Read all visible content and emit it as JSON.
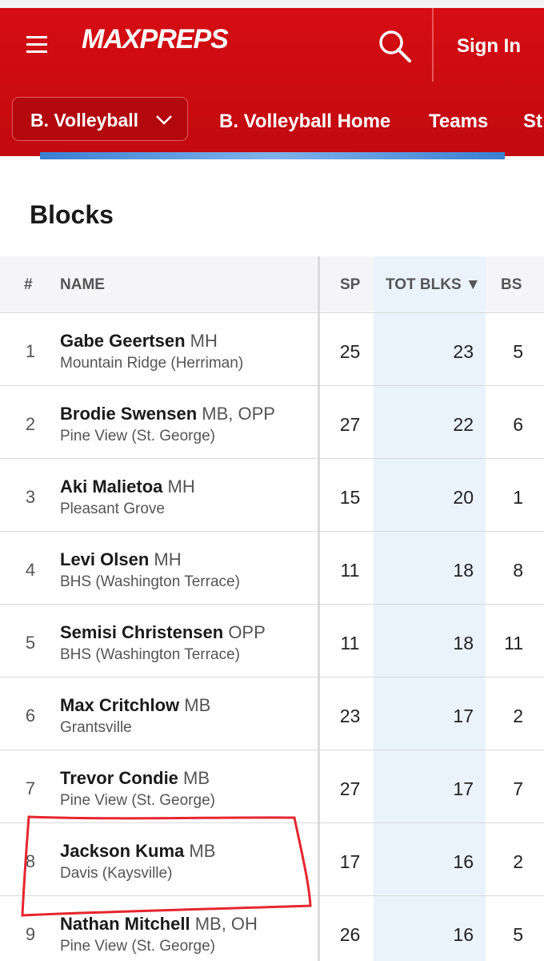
{
  "header": {
    "logo": "MAXPREPS",
    "sign_in": "Sign In",
    "sport": "B. Volleyball",
    "nav": [
      "B. Volleyball Home",
      "Teams",
      "St"
    ]
  },
  "title": "Blocks",
  "table": {
    "columns": [
      "#",
      "NAME",
      "SP",
      "TOT BLKS ▼",
      "BS"
    ],
    "rows": [
      {
        "rank": "1",
        "name": "Gabe Geertsen",
        "position": "MH",
        "school": "Mountain Ridge (Herriman)",
        "sp": "25",
        "tot_blks": "23",
        "bs": "5"
      },
      {
        "rank": "2",
        "name": "Brodie Swensen",
        "position": "MB, OPP",
        "school": "Pine View (St. George)",
        "sp": "27",
        "tot_blks": "22",
        "bs": "6"
      },
      {
        "rank": "3",
        "name": "Aki Malietoa",
        "position": "MH",
        "school": "Pleasant Grove",
        "sp": "15",
        "tot_blks": "20",
        "bs": "1"
      },
      {
        "rank": "4",
        "name": "Levi Olsen",
        "position": "MH",
        "school": "BHS (Washington Terrace)",
        "sp": "11",
        "tot_blks": "18",
        "bs": "8"
      },
      {
        "rank": "5",
        "name": "Semisi Christensen",
        "position": "OPP",
        "school": "BHS (Washington Terrace)",
        "sp": "11",
        "tot_blks": "18",
        "bs": "11"
      },
      {
        "rank": "6",
        "name": "Max Critchlow",
        "position": "MB",
        "school": "Grantsville",
        "sp": "23",
        "tot_blks": "17",
        "bs": "2"
      },
      {
        "rank": "7",
        "name": "Trevor Condie",
        "position": "MB",
        "school": "Pine View (St. George)",
        "sp": "27",
        "tot_blks": "17",
        "bs": "7"
      },
      {
        "rank": "8",
        "name": "Jackson Kuma",
        "position": "MB",
        "school": "Davis (Kaysville)",
        "sp": "17",
        "tot_blks": "16",
        "bs": "2"
      },
      {
        "rank": "9",
        "name": "Nathan Mitchell",
        "position": "MB, OH",
        "school": "Pine View (St. George)",
        "sp": "26",
        "tot_blks": "16",
        "bs": "5"
      }
    ]
  }
}
